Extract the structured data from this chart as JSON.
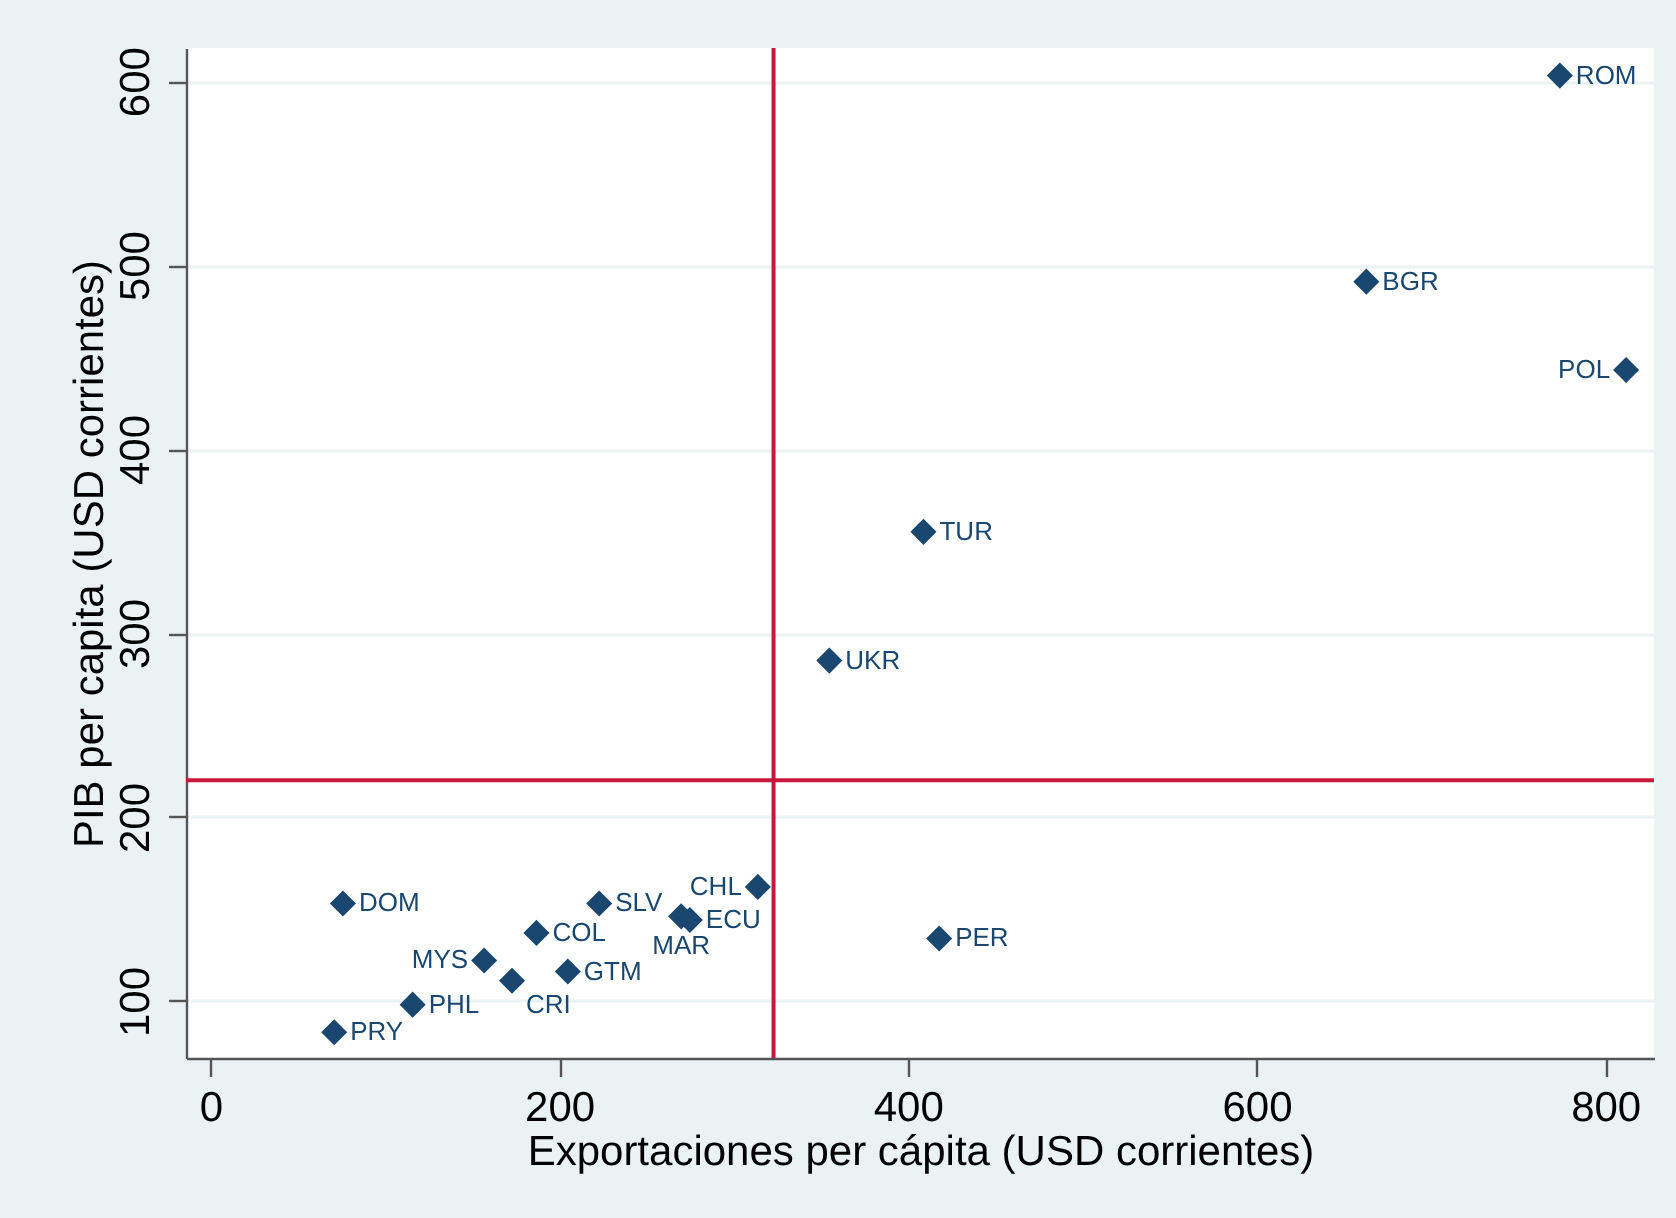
{
  "chart_data": {
    "type": "scatter",
    "xlabel": "Exportaciones per cápita (USD corrientes)",
    "ylabel": "PIB per capita (USD corrientes)",
    "x": [
      774,
      663,
      812,
      409,
      355,
      314,
      418,
      76,
      223,
      270,
      275,
      187,
      157,
      205,
      173,
      116,
      71
    ],
    "values": [
      603,
      491,
      443,
      355,
      285,
      162,
      134,
      153,
      153,
      146,
      144,
      137,
      122,
      116,
      111,
      98,
      83
    ],
    "color": "#1a476f",
    "marker": "diamond",
    "xlim": [
      -14,
      828
    ],
    "ylim": [
      69,
      618
    ],
    "xticks": [
      0,
      200,
      400,
      600,
      800
    ],
    "yticks": [
      100,
      200,
      300,
      400,
      500,
      600
    ],
    "grid": "y",
    "ref_lines": [
      {
        "axis": "x",
        "value": 323,
        "color": "#c8173c"
      },
      {
        "axis": "y",
        "value": 220,
        "color": "#c8173c"
      }
    ],
    "annotations": [
      {
        "text": "ROM",
        "x": 774,
        "y": 603
      },
      {
        "text": "BGR",
        "x": 663,
        "y": 491
      },
      {
        "text": "POL",
        "x": 812,
        "y": 443
      },
      {
        "text": "TUR",
        "x": 409,
        "y": 355
      },
      {
        "text": "UKR",
        "x": 355,
        "y": 285
      },
      {
        "text": "CHL",
        "x": 314,
        "y": 162
      },
      {
        "text": "PER",
        "x": 418,
        "y": 134
      },
      {
        "text": "DOM",
        "x": 76,
        "y": 153
      },
      {
        "text": "SLV",
        "x": 223,
        "y": 153
      },
      {
        "text": "MAR",
        "x": 270,
        "y": 146
      },
      {
        "text": "ECU",
        "x": 275,
        "y": 144
      },
      {
        "text": "COL",
        "x": 187,
        "y": 137
      },
      {
        "text": "MYS",
        "x": 157,
        "y": 122
      },
      {
        "text": "GTM",
        "x": 205,
        "y": 116
      },
      {
        "text": "CRI",
        "x": 173,
        "y": 111
      },
      {
        "text": "PHL",
        "x": 116,
        "y": 98
      },
      {
        "text": "PRY",
        "x": 71,
        "y": 83
      }
    ]
  }
}
